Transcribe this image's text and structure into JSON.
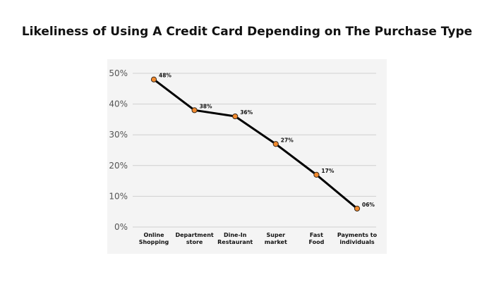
{
  "title": "Likeliness of Using A Credit Card Depending on The Purchase Type",
  "chart_data": {
    "type": "line",
    "title": "Likeliness of Using A Credit Card Depending on The Purchase Type",
    "xlabel": "",
    "ylabel": "",
    "categories": [
      [
        "Online",
        "Shopping"
      ],
      [
        "Department",
        "store"
      ],
      [
        "Dine-In",
        "Restaurant"
      ],
      [
        "Super",
        "market"
      ],
      [
        "Fast",
        "Food"
      ],
      [
        "Payments to",
        "individuals"
      ]
    ],
    "values": [
      48,
      38,
      36,
      27,
      17,
      6
    ],
    "data_labels": [
      "48%",
      "38%",
      "36%",
      "27%",
      "17%",
      "06%"
    ],
    "ylim": [
      0,
      50
    ],
    "yticks": [
      0,
      10,
      20,
      30,
      40,
      50
    ],
    "ytick_labels": [
      "0%",
      "10%",
      "20%",
      "30%",
      "40%",
      "50%"
    ],
    "grid": true,
    "colors": {
      "line": "#000000",
      "marker": "#f28a2e",
      "marker_edge": "#3a2a1a",
      "grid": "#cfcfcf",
      "panel": "#f4f4f4"
    }
  }
}
